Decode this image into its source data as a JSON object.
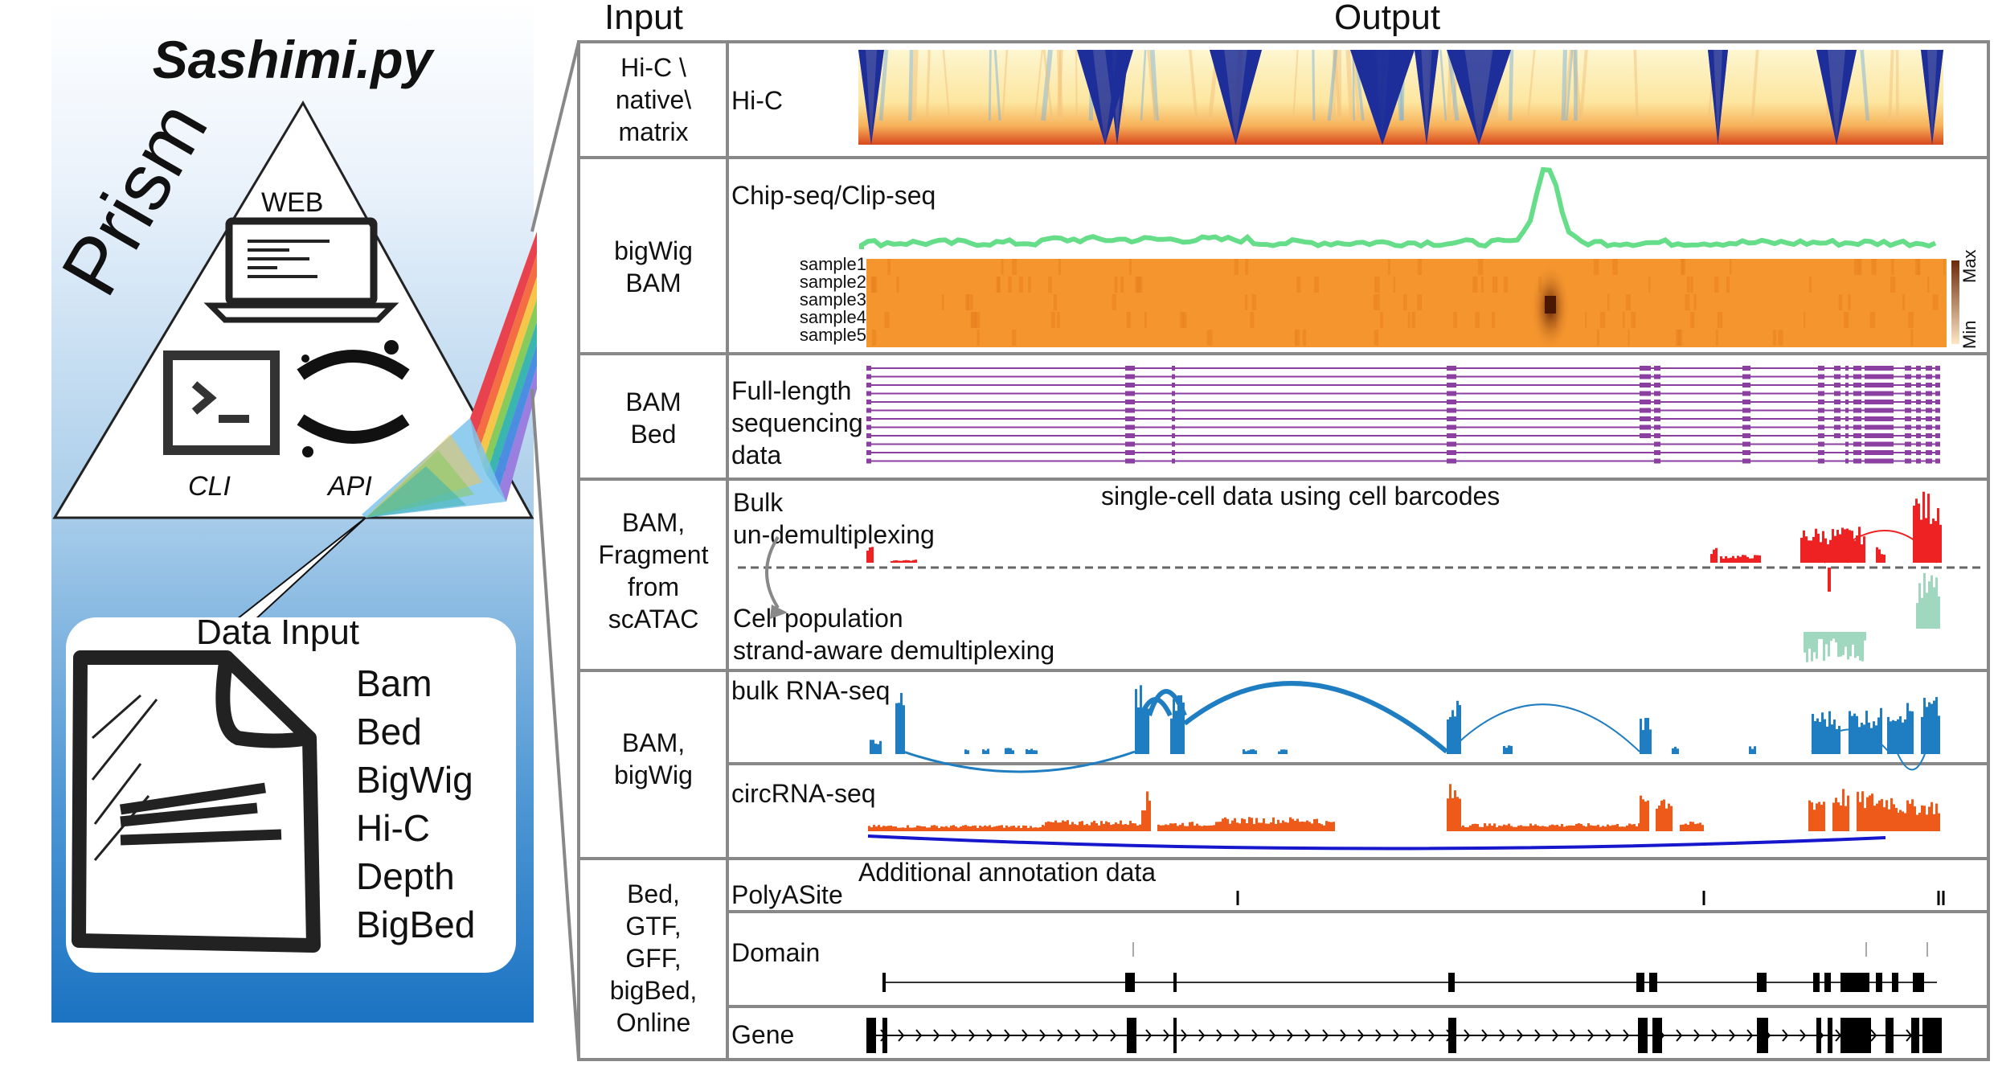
{
  "title": "Sashimi.py",
  "prism_label": "Prism",
  "prism_modes": {
    "web": "WEB",
    "cli": "CLI",
    "api": "API"
  },
  "data_input": {
    "title": "Data Input",
    "formats": [
      "Bam",
      "Bed",
      "BigWig",
      "Hi-C",
      "Depth",
      "BigBed"
    ]
  },
  "headers": {
    "input": "Input",
    "output": "Output"
  },
  "rows": [
    {
      "input": [
        "Hi-C \\",
        "native\\",
        "matrix"
      ],
      "tracks": [
        "Hi-C"
      ]
    },
    {
      "input": [
        "bigWig",
        "BAM"
      ],
      "tracks": [
        "Chip-seq/Clip-seq"
      ],
      "heatmap_samples": [
        "sample1",
        "sample2",
        "sample3",
        "sample4",
        "sample5"
      ],
      "scale": {
        "max": "Max",
        "min": "Min"
      }
    },
    {
      "input": [
        "BAM",
        "Bed"
      ],
      "tracks": [
        "Full-length",
        "sequencing",
        "data"
      ]
    },
    {
      "input": [
        "BAM,",
        "Fragment",
        "from",
        "scATAC"
      ],
      "title": "single-cell data using cell barcodes",
      "tracks": [
        "Bulk",
        "un-demultiplexing",
        "Cell population",
        "strand-aware demultiplexing"
      ]
    },
    {
      "input": [
        "BAM,",
        "bigWig"
      ],
      "tracks": [
        "bulk RNA-seq",
        "circRNA-seq"
      ]
    },
    {
      "input": [
        "Bed,",
        "GTF,",
        "GFF,",
        "bigBed,",
        "Online"
      ],
      "title": "Additional annotation data",
      "tracks": [
        "PolyASite",
        "Domain",
        "Gene"
      ]
    }
  ],
  "colors": {
    "hic": "#1d2e9a",
    "chip": "#66dd88",
    "heat": "#f5952e",
    "full_length": "#8b3fa0",
    "sc_bulk": "#ee2222",
    "sc_pop": "#9fd8bf",
    "rna": "#1f7ec1",
    "circ": "#ee5a1a",
    "circ_arc": "#1616cc",
    "annotation": "#000000"
  }
}
